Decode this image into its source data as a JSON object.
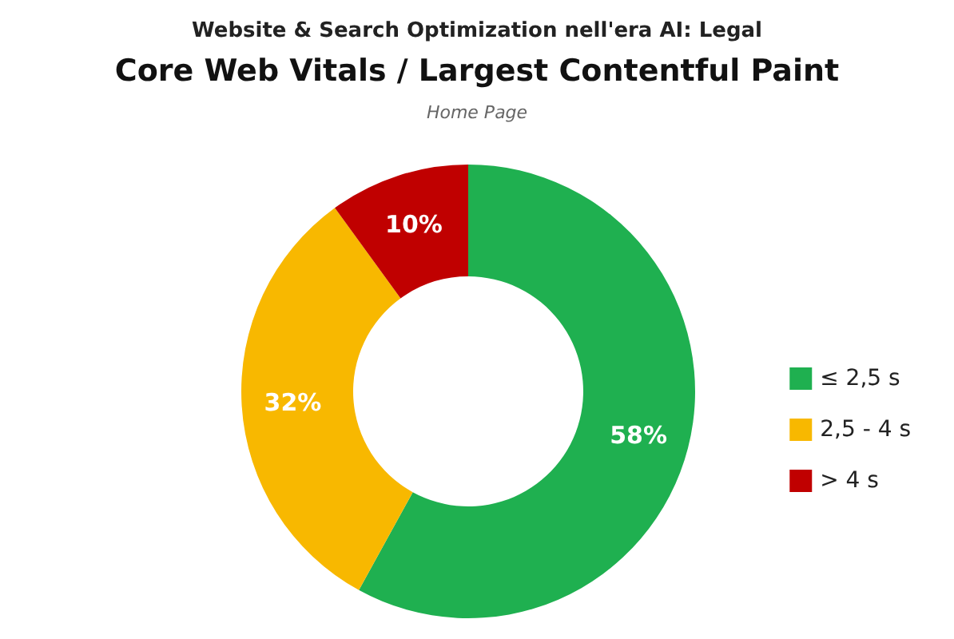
{
  "chart_data": {
    "type": "donut",
    "title": "Website & Search Optimization nell'era AI: Legal",
    "subtitle": "Core Web Vitals / Largest Contentful Paint",
    "annotations": [
      "Home Page"
    ],
    "categories": [
      "≤ 2,5 s",
      "2,5 - 4 s",
      "> 4 s"
    ],
    "values": [
      58,
      32,
      10
    ],
    "colors": [
      "#1fb050",
      "#f8b800",
      "#c00000"
    ],
    "value_labels": [
      "58%",
      "32%",
      "10%"
    ],
    "legend": "right"
  }
}
